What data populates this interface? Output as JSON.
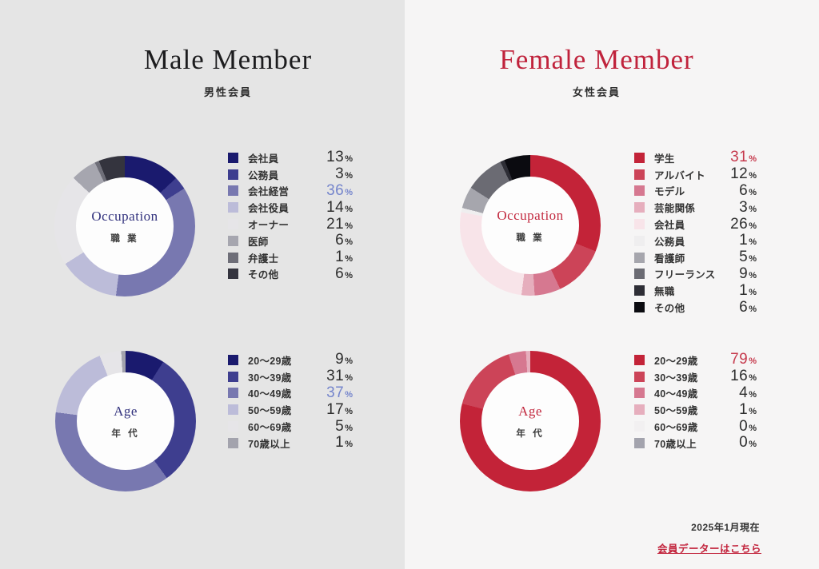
{
  "male": {
    "title": "Male Member",
    "subtitle": "男性会員"
  },
  "female": {
    "title": "Female Member",
    "subtitle": "女性会員"
  },
  "footer": {
    "date": "2025年1月現在",
    "link_label": "会員データーはこちら"
  },
  "chart_data": [
    {
      "type": "pie",
      "donut": true,
      "panel": "male",
      "title": "Occupation",
      "subtitle": "職 業",
      "legend_position": "right",
      "categories": [
        "会社員",
        "公務員",
        "会社経営",
        "会社役員",
        "オーナー",
        "医師",
        "弁護士",
        "その他"
      ],
      "values": [
        13,
        3,
        36,
        14,
        21,
        6,
        1,
        6
      ],
      "colors": [
        "#1a1a6e",
        "#3e3e8f",
        "#7878b0",
        "#bcbcd9",
        "#e6e5e8",
        "#a6a6af",
        "#6e6e78",
        "#34343e"
      ],
      "highlight_index": 2,
      "highlight_color": "#7585cc"
    },
    {
      "type": "pie",
      "donut": true,
      "panel": "male",
      "title": "Age",
      "subtitle": "年 代",
      "legend_position": "right",
      "categories": [
        "20〜29歳",
        "30〜39歳",
        "40〜49歳",
        "50〜59歳",
        "60〜69歳",
        "70歳以上"
      ],
      "values": [
        9,
        31,
        37,
        17,
        5,
        1
      ],
      "colors": [
        "#1a1a6e",
        "#3e3e8f",
        "#7878b0",
        "#bcbcd9",
        "#e6e5e8",
        "#a3a3ad"
      ],
      "highlight_index": 2,
      "highlight_color": "#7585cc"
    },
    {
      "type": "pie",
      "donut": true,
      "panel": "female",
      "title": "Occupation",
      "subtitle": "職 業",
      "legend_position": "right",
      "categories": [
        "学生",
        "アルバイト",
        "モデル",
        "芸能関係",
        "会社員",
        "公務員",
        "看護師",
        "フリーランス",
        "無職",
        "その他"
      ],
      "values": [
        31,
        12,
        6,
        3,
        26,
        1,
        5,
        9,
        1,
        6
      ],
      "colors": [
        "#c32338",
        "#cc4458",
        "#d67890",
        "#e6aebd",
        "#f8e4e9",
        "#efeeef",
        "#a6a6ad",
        "#6b6b73",
        "#2e2e36",
        "#0b0b10"
      ],
      "highlight_index": 0,
      "highlight_color": "#c63a4d"
    },
    {
      "type": "pie",
      "donut": true,
      "panel": "female",
      "title": "Age",
      "subtitle": "年 代",
      "legend_position": "right",
      "categories": [
        "20〜29歳",
        "30〜39歳",
        "40〜49歳",
        "50〜59歳",
        "60〜69歳",
        "70歳以上"
      ],
      "values": [
        79,
        16,
        4,
        1,
        0,
        0
      ],
      "colors": [
        "#c32338",
        "#cc4458",
        "#d67890",
        "#e6aebd",
        "#f2f0f1",
        "#a3a3ad"
      ],
      "highlight_index": 0,
      "highlight_color": "#c63a4d"
    }
  ]
}
